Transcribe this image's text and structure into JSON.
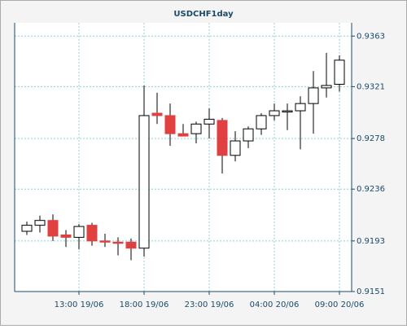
{
  "chart_data": {
    "type": "candlestick",
    "title": "USDCHF1day",
    "categories": [
      null,
      null,
      null,
      null,
      "13:00 19/06",
      null,
      null,
      null,
      null,
      "18:00 19/06",
      null,
      null,
      null,
      null,
      "23:00 19/06",
      null,
      null,
      null,
      null,
      "04:00 20/06",
      null,
      null,
      null,
      null,
      "09:00 20/06"
    ],
    "open": [
      0.9201,
      0.9206,
      0.921,
      0.9198,
      0.9196,
      0.9206,
      0.9193,
      0.9192,
      0.9192,
      0.9187,
      0.9299,
      0.9297,
      0.9282,
      0.9282,
      0.929,
      0.9293,
      0.9264,
      0.9276,
      0.9286,
      0.9297,
      0.93,
      0.9301,
      0.9307,
      0.932,
      0.9323
    ],
    "high": [
      0.9209,
      0.9214,
      0.9215,
      0.9202,
      0.9207,
      0.9208,
      0.9199,
      0.9196,
      0.9195,
      0.9322,
      0.9316,
      0.9307,
      0.929,
      0.9292,
      0.9303,
      0.9295,
      0.9284,
      0.9288,
      0.9299,
      0.9307,
      0.9307,
      0.9313,
      0.9334,
      0.9349,
      0.9347
    ],
    "low": [
      0.9198,
      0.92,
      0.9193,
      0.9188,
      0.9186,
      0.9189,
      0.9188,
      0.9181,
      0.9177,
      0.918,
      0.929,
      0.9272,
      0.928,
      0.9274,
      0.9278,
      0.9249,
      0.9259,
      0.927,
      0.9281,
      0.9293,
      0.9285,
      0.9269,
      0.9282,
      0.9312,
      0.9317
    ],
    "close": [
      0.9206,
      0.921,
      0.9197,
      0.9196,
      0.9205,
      0.9193,
      0.9192,
      0.9191,
      0.9187,
      0.9297,
      0.9297,
      0.9282,
      0.928,
      0.929,
      0.9294,
      0.9264,
      0.9276,
      0.9286,
      0.9297,
      0.9301,
      0.9301,
      0.9307,
      0.932,
      0.9322,
      0.9343
    ],
    "up_color": "#ffffff",
    "down_color": "#e04040",
    "ylim": [
      0.9151,
      0.9374
    ],
    "yticks": [
      0.9151,
      0.9193,
      0.9236,
      0.9278,
      0.9321,
      0.9363
    ],
    "grid": true
  }
}
